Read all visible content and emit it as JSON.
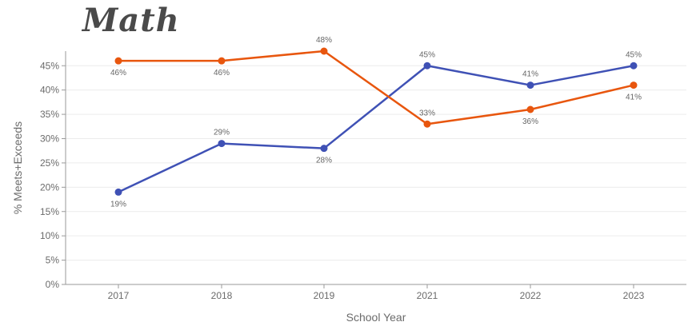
{
  "page_title": "Math",
  "chart_data": {
    "type": "line",
    "title": "Math",
    "xlabel": "School Year",
    "ylabel": "% Meets+Exceeds",
    "categories": [
      "2017",
      "2018",
      "2019",
      "2021",
      "2022",
      "2023"
    ],
    "ylim": [
      0,
      48
    ],
    "yticks": [
      0,
      5,
      10,
      15,
      20,
      25,
      30,
      35,
      40,
      45
    ],
    "ytick_labels": [
      "0%",
      "5%",
      "10%",
      "15%",
      "20%",
      "25%",
      "30%",
      "35%",
      "40%",
      "45%"
    ],
    "grid": true,
    "series": [
      {
        "color": "#3f51b5",
        "values": [
          19,
          29,
          28,
          45,
          41,
          45
        ],
        "labels": [
          "19%",
          "29%",
          "28%",
          "45%",
          "41%",
          "45%"
        ]
      },
      {
        "color": "#e8560e",
        "values": [
          46,
          46,
          48,
          33,
          36,
          41
        ],
        "labels": [
          "46%",
          "46%",
          "48%",
          "33%",
          "36%",
          "41%"
        ]
      }
    ]
  }
}
